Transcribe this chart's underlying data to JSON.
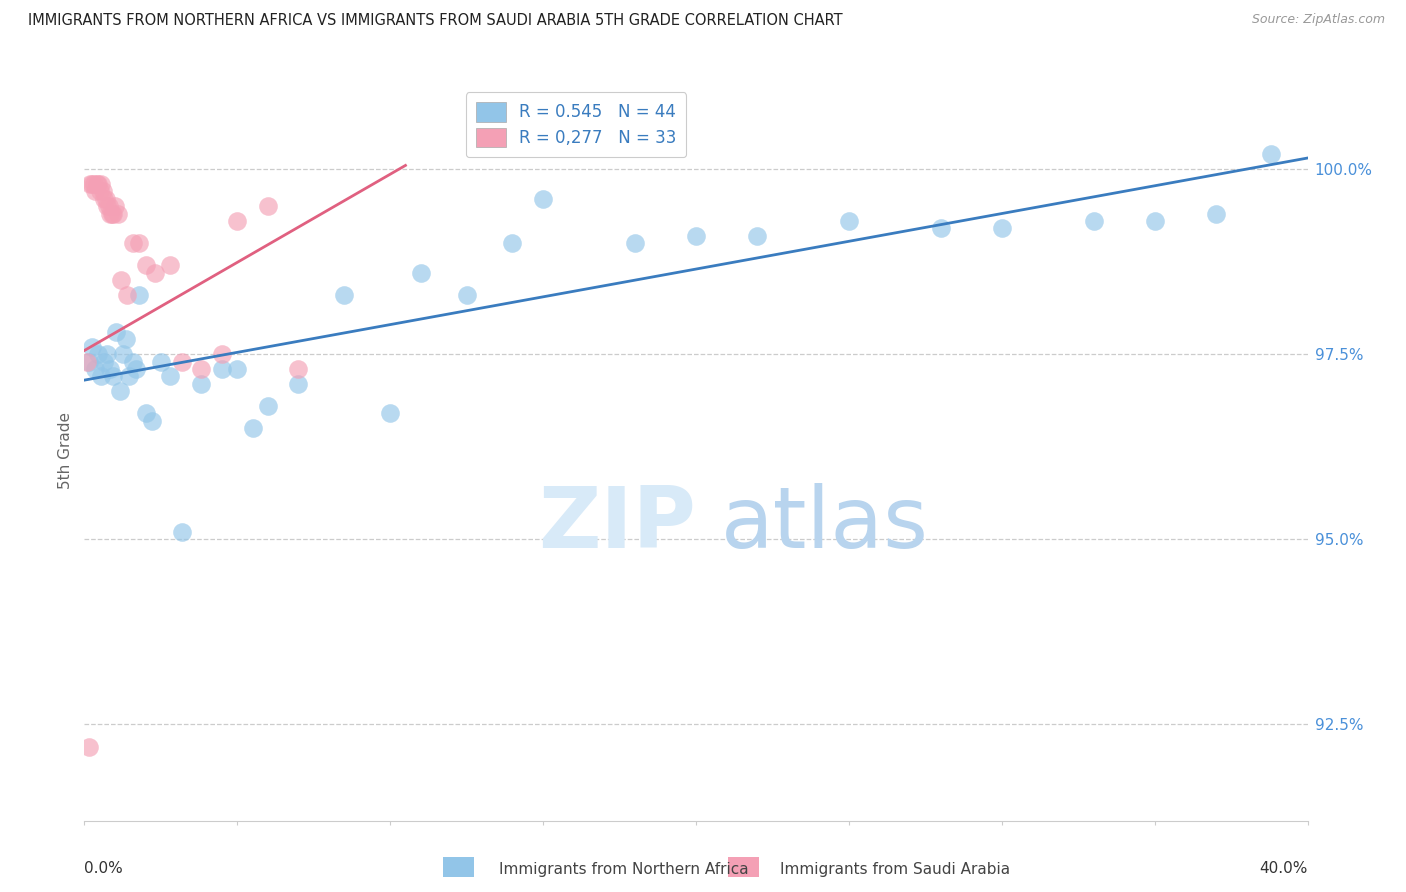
{
  "title": "IMMIGRANTS FROM NORTHERN AFRICA VS IMMIGRANTS FROM SAUDI ARABIA 5TH GRADE CORRELATION CHART",
  "source": "Source: ZipAtlas.com",
  "ylabel": "5th Grade",
  "y_ticks": [
    92.5,
    95.0,
    97.5,
    100.0
  ],
  "y_tick_labels": [
    "92.5%",
    "95.0%",
    "97.5%",
    "100.0%"
  ],
  "x_range": [
    0.0,
    40.0
  ],
  "y_range": [
    91.2,
    101.2
  ],
  "color_blue": "#92c5e8",
  "color_pink": "#f4a0b5",
  "line_blue": "#3a7cbf",
  "line_pink": "#e06080",
  "blue_scatter_x": [
    0.15,
    0.25,
    0.35,
    0.45,
    0.55,
    0.65,
    0.75,
    0.85,
    0.95,
    1.05,
    1.15,
    1.25,
    1.35,
    1.45,
    1.6,
    1.7,
    1.8,
    2.0,
    2.2,
    2.5,
    2.8,
    3.2,
    3.8,
    4.5,
    5.0,
    5.5,
    6.0,
    7.0,
    8.5,
    10.0,
    11.0,
    12.5,
    14.0,
    15.0,
    18.0,
    20.0,
    22.0,
    25.0,
    28.0,
    30.0,
    33.0,
    35.0,
    37.0,
    38.8
  ],
  "blue_scatter_y": [
    97.4,
    97.6,
    97.3,
    97.5,
    97.2,
    97.4,
    97.5,
    97.3,
    97.2,
    97.8,
    97.0,
    97.5,
    97.7,
    97.2,
    97.4,
    97.3,
    98.3,
    96.7,
    96.6,
    97.4,
    97.2,
    95.1,
    97.1,
    97.3,
    97.3,
    96.5,
    96.8,
    97.1,
    98.3,
    96.7,
    98.6,
    98.3,
    99.0,
    99.6,
    99.0,
    99.1,
    99.1,
    99.3,
    99.2,
    99.2,
    99.3,
    99.3,
    99.4,
    100.2
  ],
  "pink_scatter_x": [
    0.1,
    0.2,
    0.25,
    0.3,
    0.35,
    0.4,
    0.45,
    0.5,
    0.55,
    0.6,
    0.65,
    0.7,
    0.75,
    0.8,
    0.85,
    0.9,
    0.95,
    1.0,
    1.1,
    1.2,
    1.4,
    1.6,
    1.8,
    2.0,
    2.3,
    2.8,
    3.2,
    3.8,
    4.5,
    5.0,
    6.0,
    7.0,
    0.15
  ],
  "pink_scatter_y": [
    97.4,
    99.8,
    99.8,
    99.8,
    99.7,
    99.8,
    99.8,
    99.7,
    99.8,
    99.7,
    99.6,
    99.6,
    99.5,
    99.5,
    99.4,
    99.4,
    99.4,
    99.5,
    99.4,
    98.5,
    98.3,
    99.0,
    99.0,
    98.7,
    98.6,
    98.7,
    97.4,
    97.3,
    97.5,
    99.3,
    99.5,
    97.3,
    92.2
  ],
  "blue_line_x": [
    0.0,
    40.0
  ],
  "blue_line_y": [
    97.15,
    100.15
  ],
  "pink_line_x": [
    0.0,
    10.5
  ],
  "pink_line_y": [
    97.55,
    100.05
  ]
}
